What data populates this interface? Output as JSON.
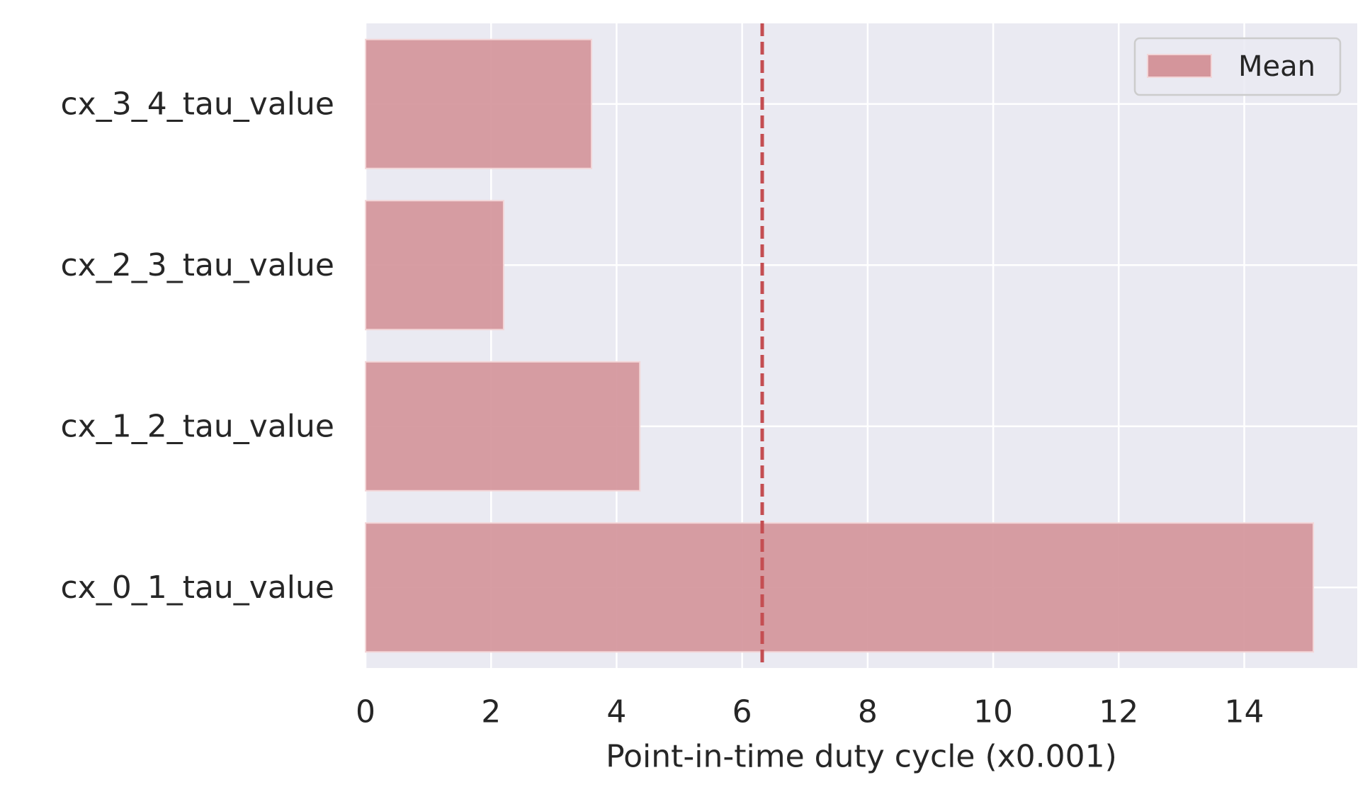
{
  "chart_data": {
    "type": "bar",
    "orientation": "horizontal",
    "categories": [
      "cx_0_1_tau_value",
      "cx_1_2_tau_value",
      "cx_2_3_tau_value",
      "cx_3_4_tau_value"
    ],
    "series": [
      {
        "name": "Mean",
        "values": [
          15.1,
          4.37,
          2.2,
          3.6
        ],
        "color": "#d4959b"
      }
    ],
    "reference_line": {
      "x": 6.32,
      "style": "dashed",
      "color": "#c44e52"
    },
    "xlabel": "Point-in-time duty cycle  (x0.001)",
    "ylabel": "",
    "xlim": [
      0,
      15.8
    ],
    "xticks": [
      0,
      2,
      4,
      6,
      8,
      10,
      12,
      14
    ],
    "grid": true,
    "legend": {
      "position": "top-right"
    },
    "colors": {
      "background": "#eaeaf2",
      "grid": "#ffffff",
      "text": "#262626"
    }
  }
}
